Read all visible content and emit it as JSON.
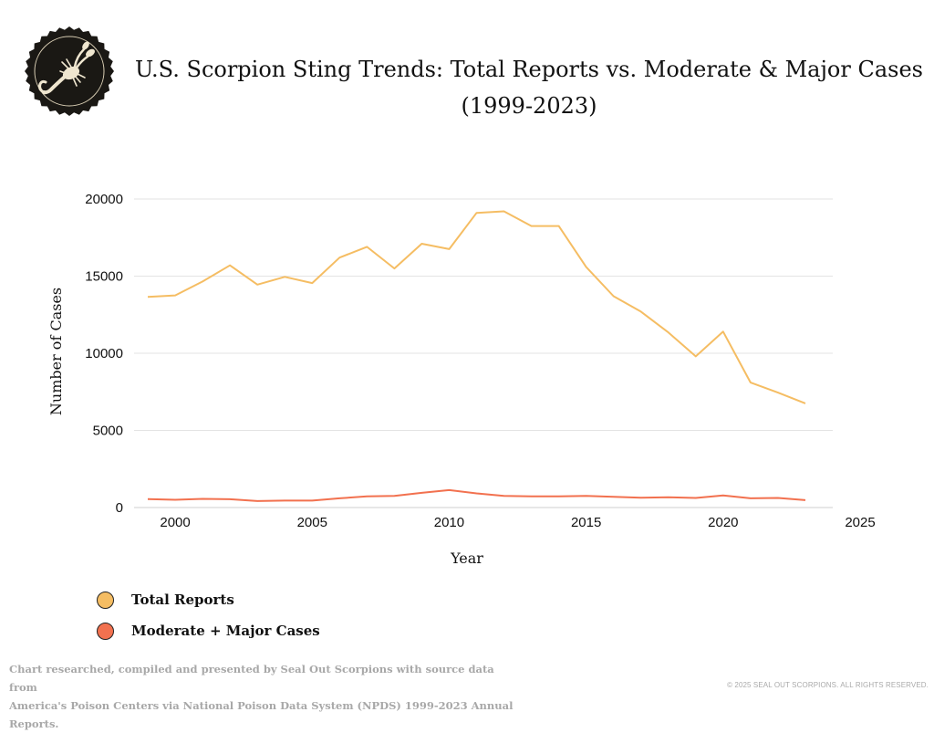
{
  "header": {
    "logo_icon": "scorpion-seal-icon",
    "title_line1": "U.S. Scorpion Sting Trends: Total Reports vs. Moderate & Major Cases",
    "title_line2": "(1999-2023)"
  },
  "chart_data": {
    "type": "line",
    "title": "U.S. Scorpion Sting Trends: Total Reports vs. Moderate & Major Cases (1999-2023)",
    "xlabel": "Year",
    "ylabel": "Number of Cases",
    "xlim": [
      1998.5,
      2024
    ],
    "ylim": [
      0,
      20000
    ],
    "xticks": [
      2000,
      2005,
      2010,
      2015,
      2020,
      2025
    ],
    "yticks": [
      0,
      5000,
      10000,
      15000,
      20000
    ],
    "grid": "horizontal",
    "legend_position": "bottom-left",
    "x": [
      1999,
      2000,
      2001,
      2002,
      2003,
      2004,
      2005,
      2006,
      2007,
      2008,
      2009,
      2010,
      2011,
      2012,
      2013,
      2014,
      2015,
      2016,
      2017,
      2018,
      2019,
      2020,
      2021,
      2022,
      2023
    ],
    "series": [
      {
        "name": "Total Reports",
        "color": "#f5bd63",
        "values": [
          13650,
          13750,
          14650,
          15700,
          14450,
          14950,
          14550,
          16200,
          16900,
          15500,
          17100,
          16750,
          19100,
          19200,
          18250,
          18250,
          15600,
          13700,
          12700,
          11350,
          9800,
          11400,
          8100,
          7450,
          6750
        ]
      },
      {
        "name": "Moderate + Major Cases",
        "color": "#f2714f",
        "values": [
          550,
          500,
          560,
          540,
          420,
          450,
          450,
          600,
          720,
          750,
          950,
          1130,
          920,
          750,
          730,
          730,
          750,
          700,
          640,
          670,
          620,
          780,
          600,
          620,
          480
        ]
      }
    ]
  },
  "legend": {
    "items": [
      {
        "label": "Total Reports",
        "color": "#f5bd63"
      },
      {
        "label": "Moderate + Major Cases",
        "color": "#f2714f"
      }
    ]
  },
  "footer": {
    "line1": "Chart researched, compiled and presented by Seal Out Scorpions with source data from",
    "line2": "America's Poison Centers via National Poison Data System (NPDS) 1999-2023 Annual Reports.",
    "copyright": "© 2025 SEAL OUT SCORPIONS. ALL RIGHTS RESERVED."
  }
}
